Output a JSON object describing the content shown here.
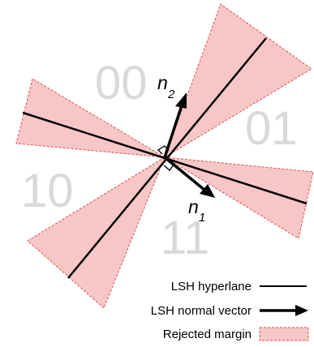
{
  "regions": [
    "00",
    "01",
    "10",
    "11"
  ],
  "vectors": [
    {
      "symbol": "n",
      "subscript": "2"
    },
    {
      "symbol": "n",
      "subscript": "1"
    }
  ],
  "legend": {
    "hyperplane": "LSH hyperlane",
    "normal_vector": "LSH normal vector",
    "margin": "Rejected margin"
  },
  "colors": {
    "margin_fill": "#f7c6c6",
    "margin_border": "#d9534f",
    "line": "#000000",
    "region_text": "#d9d9d9"
  }
}
